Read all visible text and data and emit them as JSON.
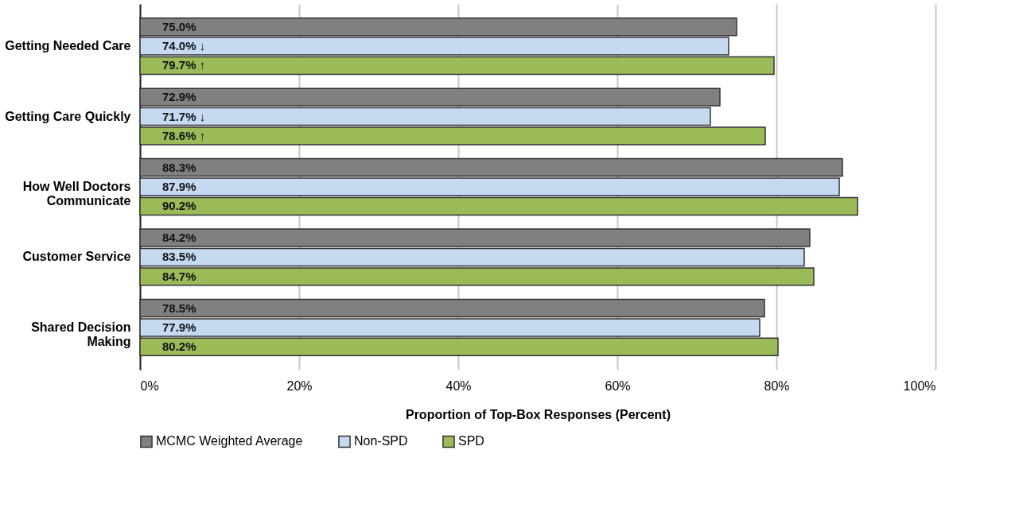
{
  "chart_data": {
    "type": "bar",
    "orientation": "horizontal",
    "categories": [
      "Getting Needed Care",
      "Getting Care Quickly",
      "How Well Doctors Communicate",
      "Customer Service",
      "Shared Decision Making"
    ],
    "series": [
      {
        "name": "MCMC Weighted Average",
        "color": "#808080",
        "values": [
          75.0,
          72.9,
          88.3,
          84.2,
          78.5
        ],
        "value_labels": [
          "75.0%",
          "72.9%",
          "88.3%",
          "84.2%",
          "78.5%"
        ]
      },
      {
        "name": "Non-SPD",
        "color": "#c5d9f1",
        "values": [
          74.0,
          71.7,
          87.9,
          83.5,
          77.9
        ],
        "value_labels": [
          "74.0%  ↓",
          "71.7%  ↓",
          "87.9%",
          "83.5%",
          "77.9%"
        ]
      },
      {
        "name": "SPD",
        "color": "#9bbb59",
        "values": [
          79.7,
          78.6,
          90.2,
          84.7,
          80.2
        ],
        "value_labels": [
          "79.7%  ↑",
          "78.6%  ↑",
          "90.2%",
          "84.7%",
          "80.2%"
        ]
      }
    ],
    "xlabel": "Proportion of Top-Box Responses (Percent)",
    "xlim": [
      0,
      100
    ],
    "xticks": [
      {
        "value": 0,
        "label": "0%"
      },
      {
        "value": 20,
        "label": "20%"
      },
      {
        "value": 40,
        "label": "40%"
      },
      {
        "value": 60,
        "label": "60%"
      },
      {
        "value": 80,
        "label": "80%"
      },
      {
        "value": 100,
        "label": "100%"
      }
    ],
    "grid": "x",
    "legend": "bottom"
  }
}
